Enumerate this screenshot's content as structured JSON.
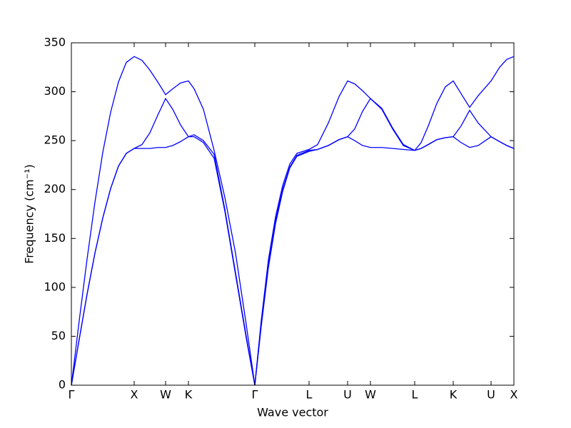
{
  "chart_data": {
    "type": "line",
    "xlabel": "Wave vector",
    "ylabel": "Frequency (cm⁻¹)",
    "x": [
      0,
      11,
      22,
      33,
      44,
      55,
      66,
      77,
      88,
      99,
      110,
      121,
      132,
      142,
      153,
      164,
      172,
      185,
      200,
      215,
      230,
      245,
      257,
      266,
      276,
      286,
      296,
      306,
      316,
      333,
      345,
      360,
      375,
      387,
      397,
      408,
      419,
      435,
      450,
      465,
      481,
      490,
      500,
      512,
      524,
      535,
      546,
      558,
      570,
      588,
      600,
      610,
      620
    ],
    "series": [
      {
        "color": "#0000ff",
        "values": [
          0,
          47,
          93,
          135,
          171,
          201,
          224,
          237,
          242,
          242,
          242,
          243,
          243,
          245,
          249,
          254,
          254,
          248,
          232,
          178,
          113,
          48,
          0,
          60,
          120,
          165,
          198,
          222,
          234,
          239,
          241,
          245,
          251,
          254,
          250,
          245,
          243,
          243,
          242,
          241,
          240,
          242,
          246,
          251,
          253,
          254,
          248,
          243,
          245,
          254,
          249,
          245,
          242
        ]
      },
      {
        "color": "#0000ff",
        "values": [
          0,
          47,
          93,
          135,
          171,
          201,
          224,
          237,
          242,
          246,
          258,
          276,
          293,
          282,
          266,
          254,
          256,
          250,
          236,
          180,
          115,
          50,
          0,
          62,
          123,
          168,
          200,
          223,
          235,
          240,
          241,
          245,
          251,
          254,
          262,
          280,
          293,
          282,
          262,
          245,
          240,
          242,
          246,
          251,
          253,
          254,
          265,
          281,
          268,
          254,
          249,
          245,
          242
        ]
      },
      {
        "color": "#0000ff",
        "values": [
          0,
          66,
          129,
          187,
          238,
          279,
          310,
          330,
          336,
          332,
          322,
          310,
          297,
          303,
          309,
          311,
          303,
          282,
          240,
          192,
          135,
          62,
          0,
          66,
          128,
          172,
          204,
          226,
          237,
          241,
          246,
          268,
          295,
          311,
          308,
          301,
          293,
          283,
          263,
          246,
          240,
          248,
          265,
          288,
          305,
          311,
          298,
          284,
          296,
          311,
          325,
          333,
          336
        ]
      }
    ],
    "xlim": [
      0,
      620
    ],
    "xticks": [
      {
        "value": 0,
        "label": "Γ"
      },
      {
        "value": 88,
        "label": "X"
      },
      {
        "value": 132,
        "label": "W"
      },
      {
        "value": 164,
        "label": "K"
      },
      {
        "value": 257,
        "label": "Γ"
      },
      {
        "value": 333,
        "label": "L"
      },
      {
        "value": 387,
        "label": "U"
      },
      {
        "value": 419,
        "label": "W"
      },
      {
        "value": 481,
        "label": "L"
      },
      {
        "value": 535,
        "label": "K"
      },
      {
        "value": 588,
        "label": "U"
      },
      {
        "value": 620,
        "label": "X"
      }
    ],
    "ylim": [
      0,
      350
    ],
    "yticks": [
      0,
      50,
      100,
      150,
      200,
      250,
      300,
      350
    ]
  }
}
